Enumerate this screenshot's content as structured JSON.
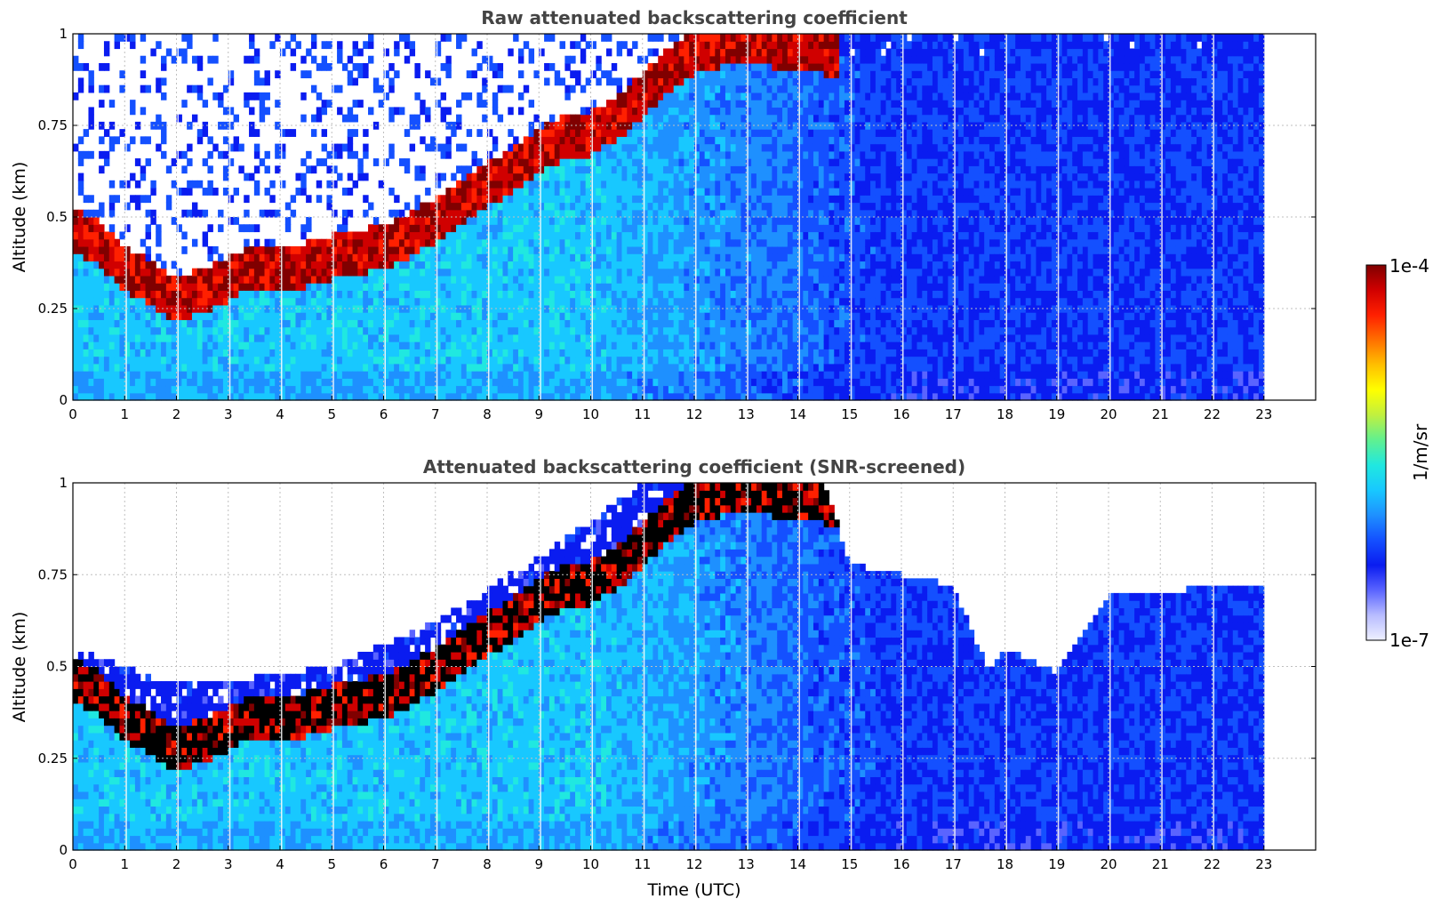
{
  "chart_data": [
    {
      "type": "heatmap",
      "title": "Raw attenuated backscattering coefficient",
      "ylabel": "Altitude (km)",
      "xlabel": "",
      "xlim": [
        0,
        24
      ],
      "ylim": [
        0,
        1
      ],
      "x_ticks": [
        "0",
        "1",
        "2",
        "3",
        "4",
        "5",
        "6",
        "7",
        "8",
        "9",
        "10",
        "11",
        "12",
        "13",
        "14",
        "15",
        "16",
        "17",
        "18",
        "19",
        "20",
        "21",
        "22",
        "23"
      ],
      "y_ticks": [
        "0",
        "0.25",
        "0.5",
        "0.75",
        "1"
      ],
      "grid": true,
      "data_end_hour": 23,
      "aerosol_layer_top_km": [
        [
          0.0,
          0.46
        ],
        [
          0.5,
          0.43
        ],
        [
          1.0,
          0.36
        ],
        [
          1.5,
          0.32
        ],
        [
          2.0,
          0.27
        ],
        [
          2.5,
          0.3
        ],
        [
          3.0,
          0.33
        ],
        [
          3.5,
          0.37
        ],
        [
          4.0,
          0.36
        ],
        [
          4.5,
          0.37
        ],
        [
          5.0,
          0.39
        ],
        [
          5.5,
          0.4
        ],
        [
          6.0,
          0.42
        ],
        [
          6.5,
          0.45
        ],
        [
          7.0,
          0.49
        ],
        [
          7.5,
          0.54
        ],
        [
          8.0,
          0.59
        ],
        [
          8.5,
          0.63
        ],
        [
          9.0,
          0.68
        ],
        [
          9.5,
          0.72
        ],
        [
          10.0,
          0.73
        ],
        [
          10.5,
          0.77
        ],
        [
          11.0,
          0.83
        ],
        [
          11.5,
          0.9
        ],
        [
          12.0,
          0.95
        ],
        [
          12.5,
          0.97
        ],
        [
          13.0,
          0.98
        ],
        [
          13.5,
          0.97
        ],
        [
          14.0,
          0.96
        ],
        [
          14.5,
          0.95
        ]
      ],
      "screened": false
    },
    {
      "type": "heatmap",
      "title": "Attenuated backscattering coefficient (SNR-screened)",
      "ylabel": "Altitude (km)",
      "xlabel": "Time (UTC)",
      "xlim": [
        0,
        24
      ],
      "ylim": [
        0,
        1
      ],
      "x_ticks": [
        "0",
        "1",
        "2",
        "3",
        "4",
        "5",
        "6",
        "7",
        "8",
        "9",
        "10",
        "11",
        "12",
        "13",
        "14",
        "15",
        "16",
        "17",
        "18",
        "19",
        "20",
        "21",
        "22",
        "23"
      ],
      "y_ticks": [
        "0",
        "0.25",
        "0.5",
        "0.75",
        "1"
      ],
      "grid": true,
      "data_end_hour": 23,
      "screened_top_km": [
        [
          0.0,
          0.55
        ],
        [
          2.0,
          0.45
        ],
        [
          3.0,
          0.46
        ],
        [
          5.0,
          0.5
        ],
        [
          7.0,
          0.62
        ],
        [
          9.0,
          0.8
        ],
        [
          11.0,
          1.0
        ],
        [
          14.5,
          1.0
        ],
        [
          15.0,
          0.78
        ],
        [
          17.0,
          0.72
        ],
        [
          17.7,
          0.48
        ],
        [
          18.0,
          0.55
        ],
        [
          19.0,
          0.48
        ],
        [
          20.0,
          0.7
        ],
        [
          23.0,
          0.72
        ]
      ],
      "screened": true
    }
  ],
  "colorbar": {
    "label": "1/m/sr",
    "max_label": "1e-4",
    "min_label": "1e-7",
    "colors": [
      "#eef0ff",
      "#b8bcff",
      "#5a64ff",
      "#0a1cf0",
      "#1450ff",
      "#1e90ff",
      "#18c8ff",
      "#20e8e0",
      "#60f090",
      "#c0f040",
      "#ffff00",
      "#ffc000",
      "#ff7000",
      "#ff2000",
      "#d00000",
      "#800000"
    ]
  }
}
